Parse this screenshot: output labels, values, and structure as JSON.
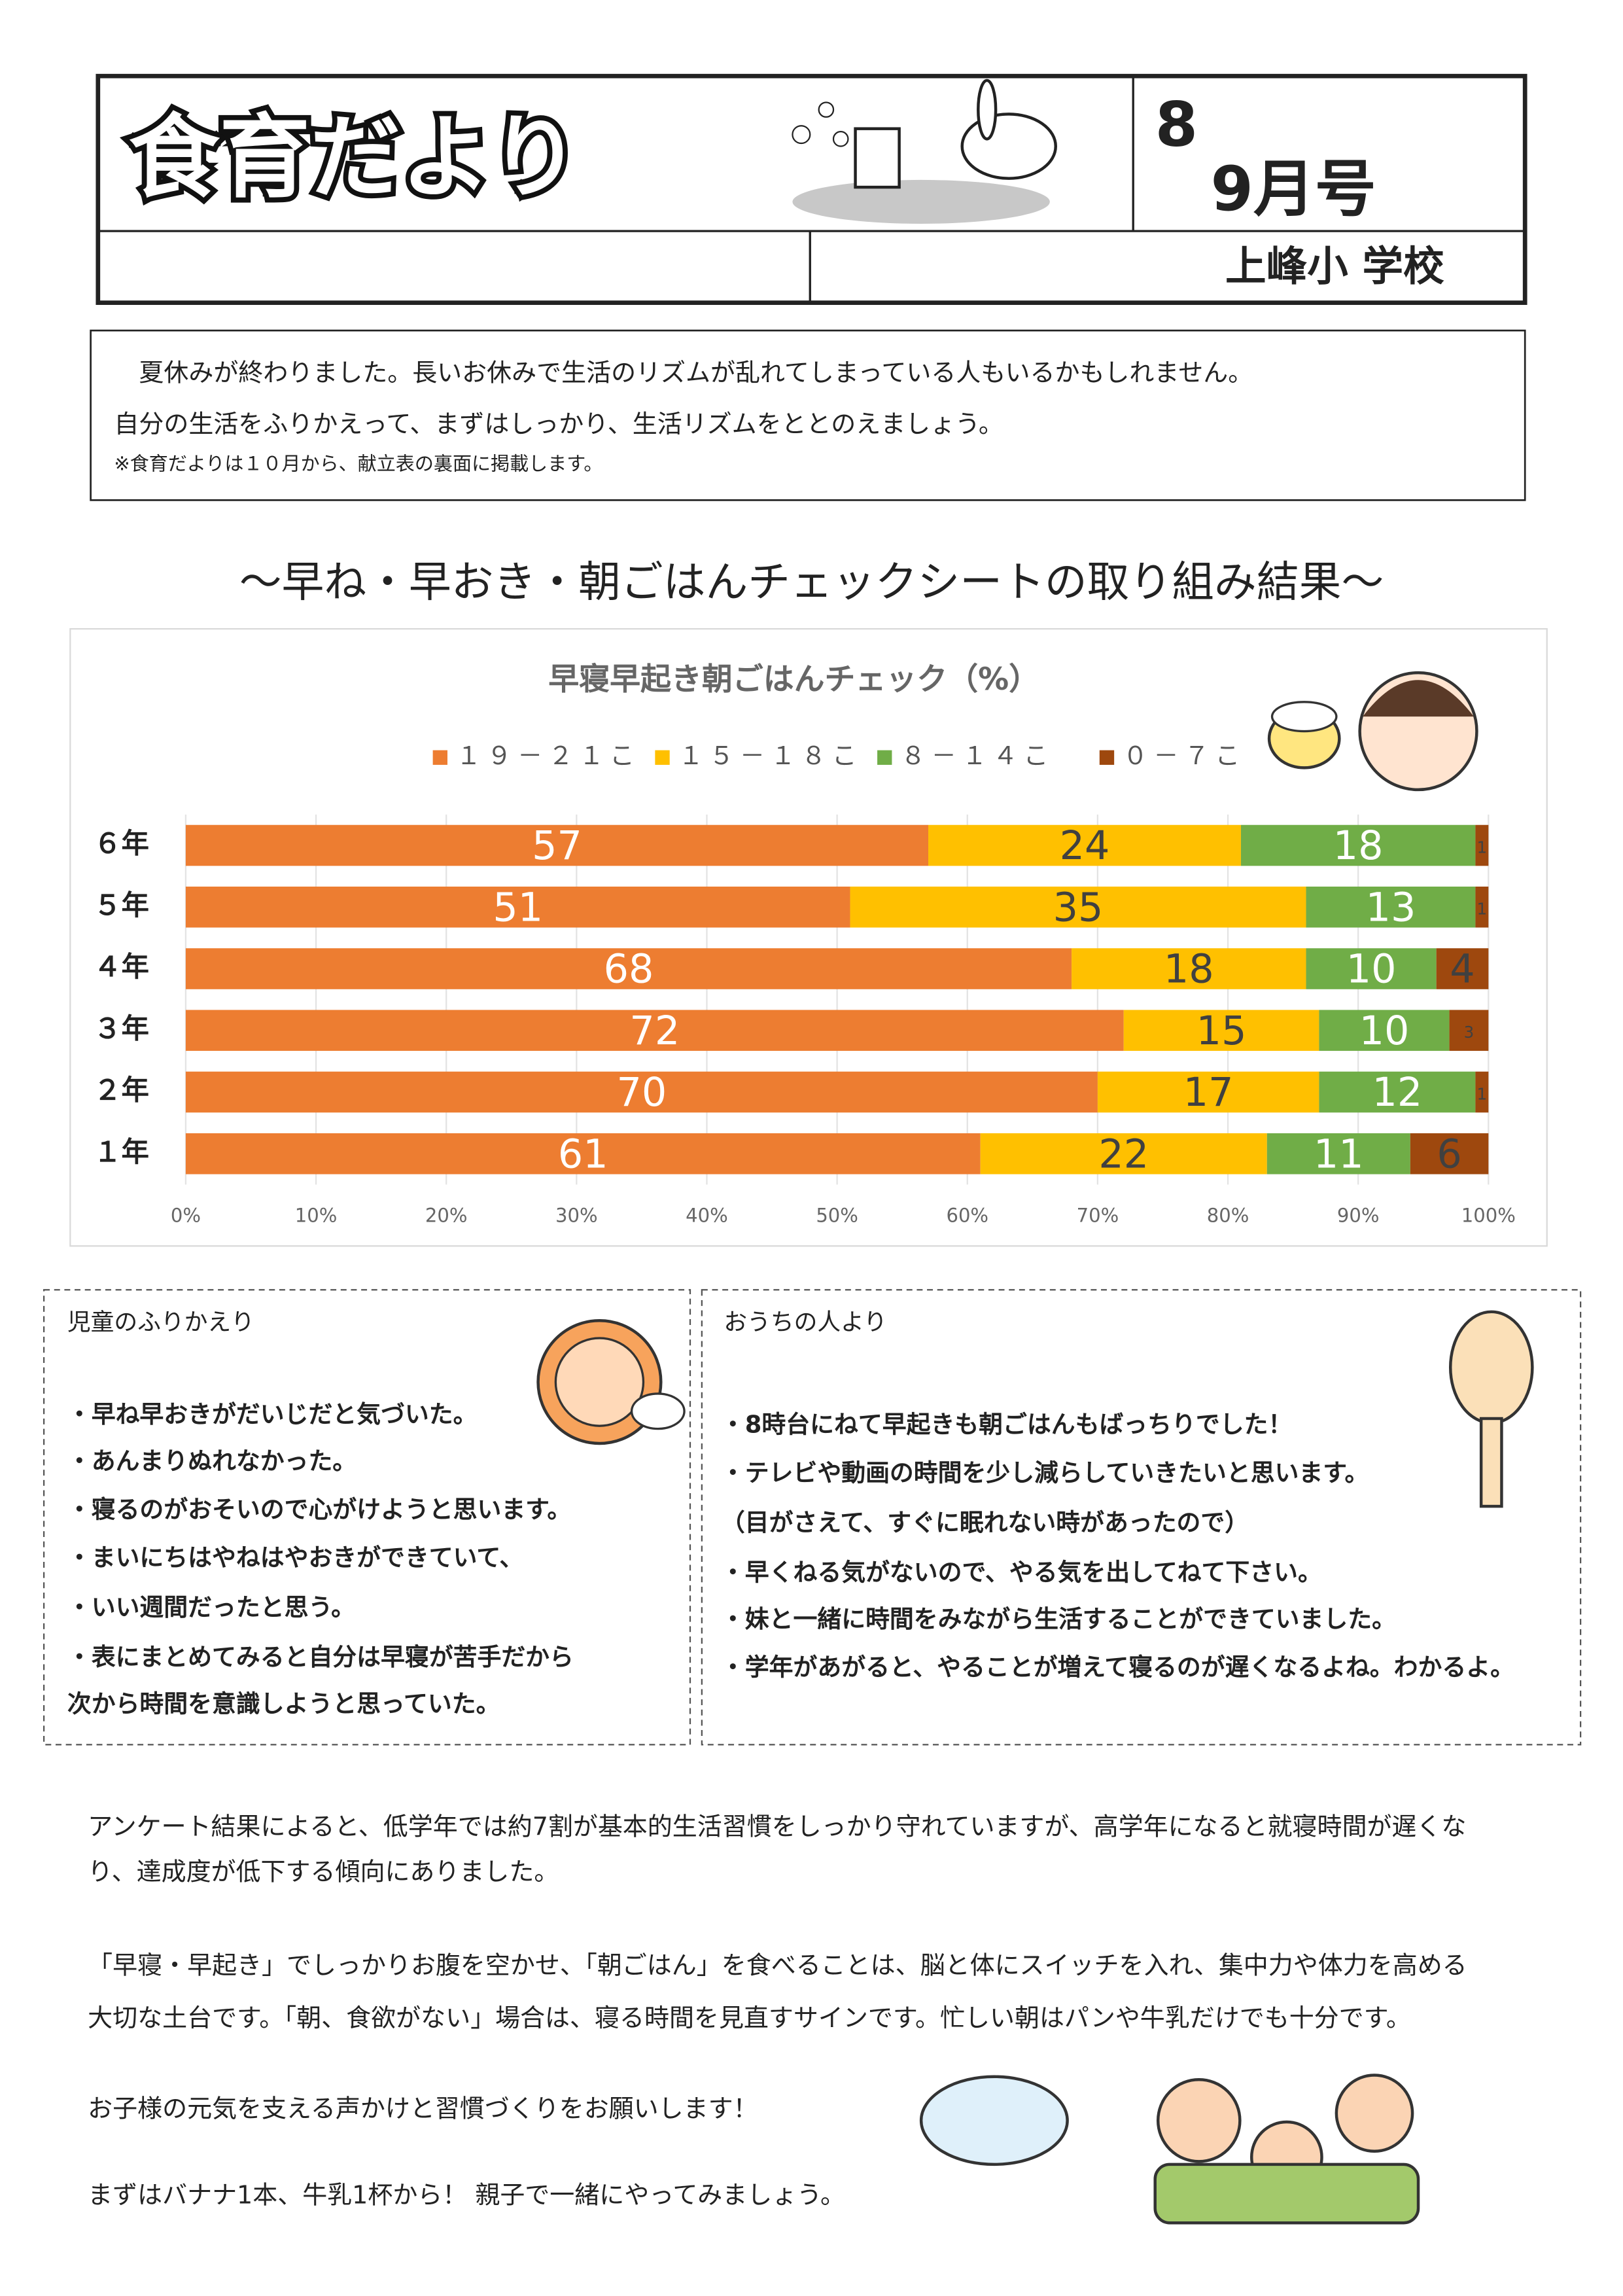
{
  "header": {
    "title": "食育だより",
    "issue_number": "8",
    "issue_months": "9月号",
    "school": "上峰小 学校"
  },
  "intro": {
    "lines": [
      "　夏休みが終わりました。長いお休みで生活のリズムが乱れてしまっている人もいるかもしれません。",
      "自分の生活をふりかえって、まずはしっかり、生活リズムをととのえましょう。"
    ],
    "note": "※食育だよりは１０月から、献立表の裏面に掲載します。"
  },
  "section_heading": "～早ね・早おき・朝ごはんチェックシートの取り組み結果～",
  "chart_data": {
    "type": "stacked-bar-horizontal",
    "title": "早寝早起き朝ごはんチェック（%）",
    "categories": [
      "６年",
      "５年",
      "４年",
      "３年",
      "２年",
      "１年"
    ],
    "series": [
      {
        "name": "１９－２１こ",
        "color": "#ed7d31",
        "values": [
          57,
          51,
          68,
          72,
          70,
          61
        ]
      },
      {
        "name": "１５－１８こ",
        "color": "#ffc000",
        "values": [
          24,
          35,
          18,
          15,
          17,
          22
        ]
      },
      {
        "name": "８－１４こ",
        "color": "#70ad47",
        "values": [
          18,
          13,
          10,
          10,
          12,
          11
        ]
      },
      {
        "name": "０－７こ",
        "color": "#9e480e",
        "values": [
          1,
          1,
          4,
          3,
          1,
          6
        ]
      }
    ],
    "xlim": [
      0,
      100
    ],
    "xticks": [
      {
        "value": 0,
        "label": "0%"
      },
      {
        "value": 10,
        "label": "10%"
      },
      {
        "value": 20,
        "label": "20%"
      },
      {
        "value": 30,
        "label": "30%"
      },
      {
        "value": 40,
        "label": "40%"
      },
      {
        "value": 50,
        "label": "50%"
      },
      {
        "value": 60,
        "label": "60%"
      },
      {
        "value": 70,
        "label": "70%"
      },
      {
        "value": 80,
        "label": "80%"
      },
      {
        "value": 90,
        "label": "90%"
      },
      {
        "value": 100,
        "label": "100%"
      }
    ],
    "grid": true,
    "legend": "top"
  },
  "children_box": {
    "title": "児童のふりかえり",
    "items": [
      "・早ね早おきがだいじだと気づいた。",
      "・あんまりぬれなかった。",
      "・寝るのがおそいので心がけようと思います。",
      "・まいにちはやねはやおきができていて、",
      "・いい週間だったと思う。",
      "・表にまとめてみると自分は早寝が苦手だから",
      "次から時間を意識しようと思っていた。"
    ]
  },
  "family_box": {
    "title": "おうちの人より",
    "items": [
      "・8時台にねて早起きも朝ごはんもばっちりでした！",
      "・テレビや動画の時間を少し減らしていきたいと思います。",
      "（目がさえて、すぐに眠れない時があったので）",
      "・早くねる気がないので、やる気を出してねて下さい。",
      "・妹と一緒に時間をみながら生活することができていました。",
      "・学年があがると、やることが増えて寝るのが遅くなるよね。わかるよ。"
    ]
  },
  "body": {
    "lines": [
      "アンケート結果によると、低学年では約7割が基本的生活習慣をしっかり守れていますが、高学年になると就寝時間が遅くな",
      "り、達成度が低下する傾向にありました。",
      "「早寝・早起き」でしっかりお腹を空かせ、「朝ごはん」を食べることは、脳と体にスイッチを入れ、集中力や体力を高める",
      "大切な土台です。「朝、食欲がない」場合は、寝る時間を見直すサインです。忙しい朝はパンや牛乳だけでも十分です。",
      "お子様の元気を支える声かけと習慣づくりをお願いします！",
      "まずはバナナ1本、牛乳1杯から！ 親子で一緒にやってみましょう。"
    ]
  }
}
